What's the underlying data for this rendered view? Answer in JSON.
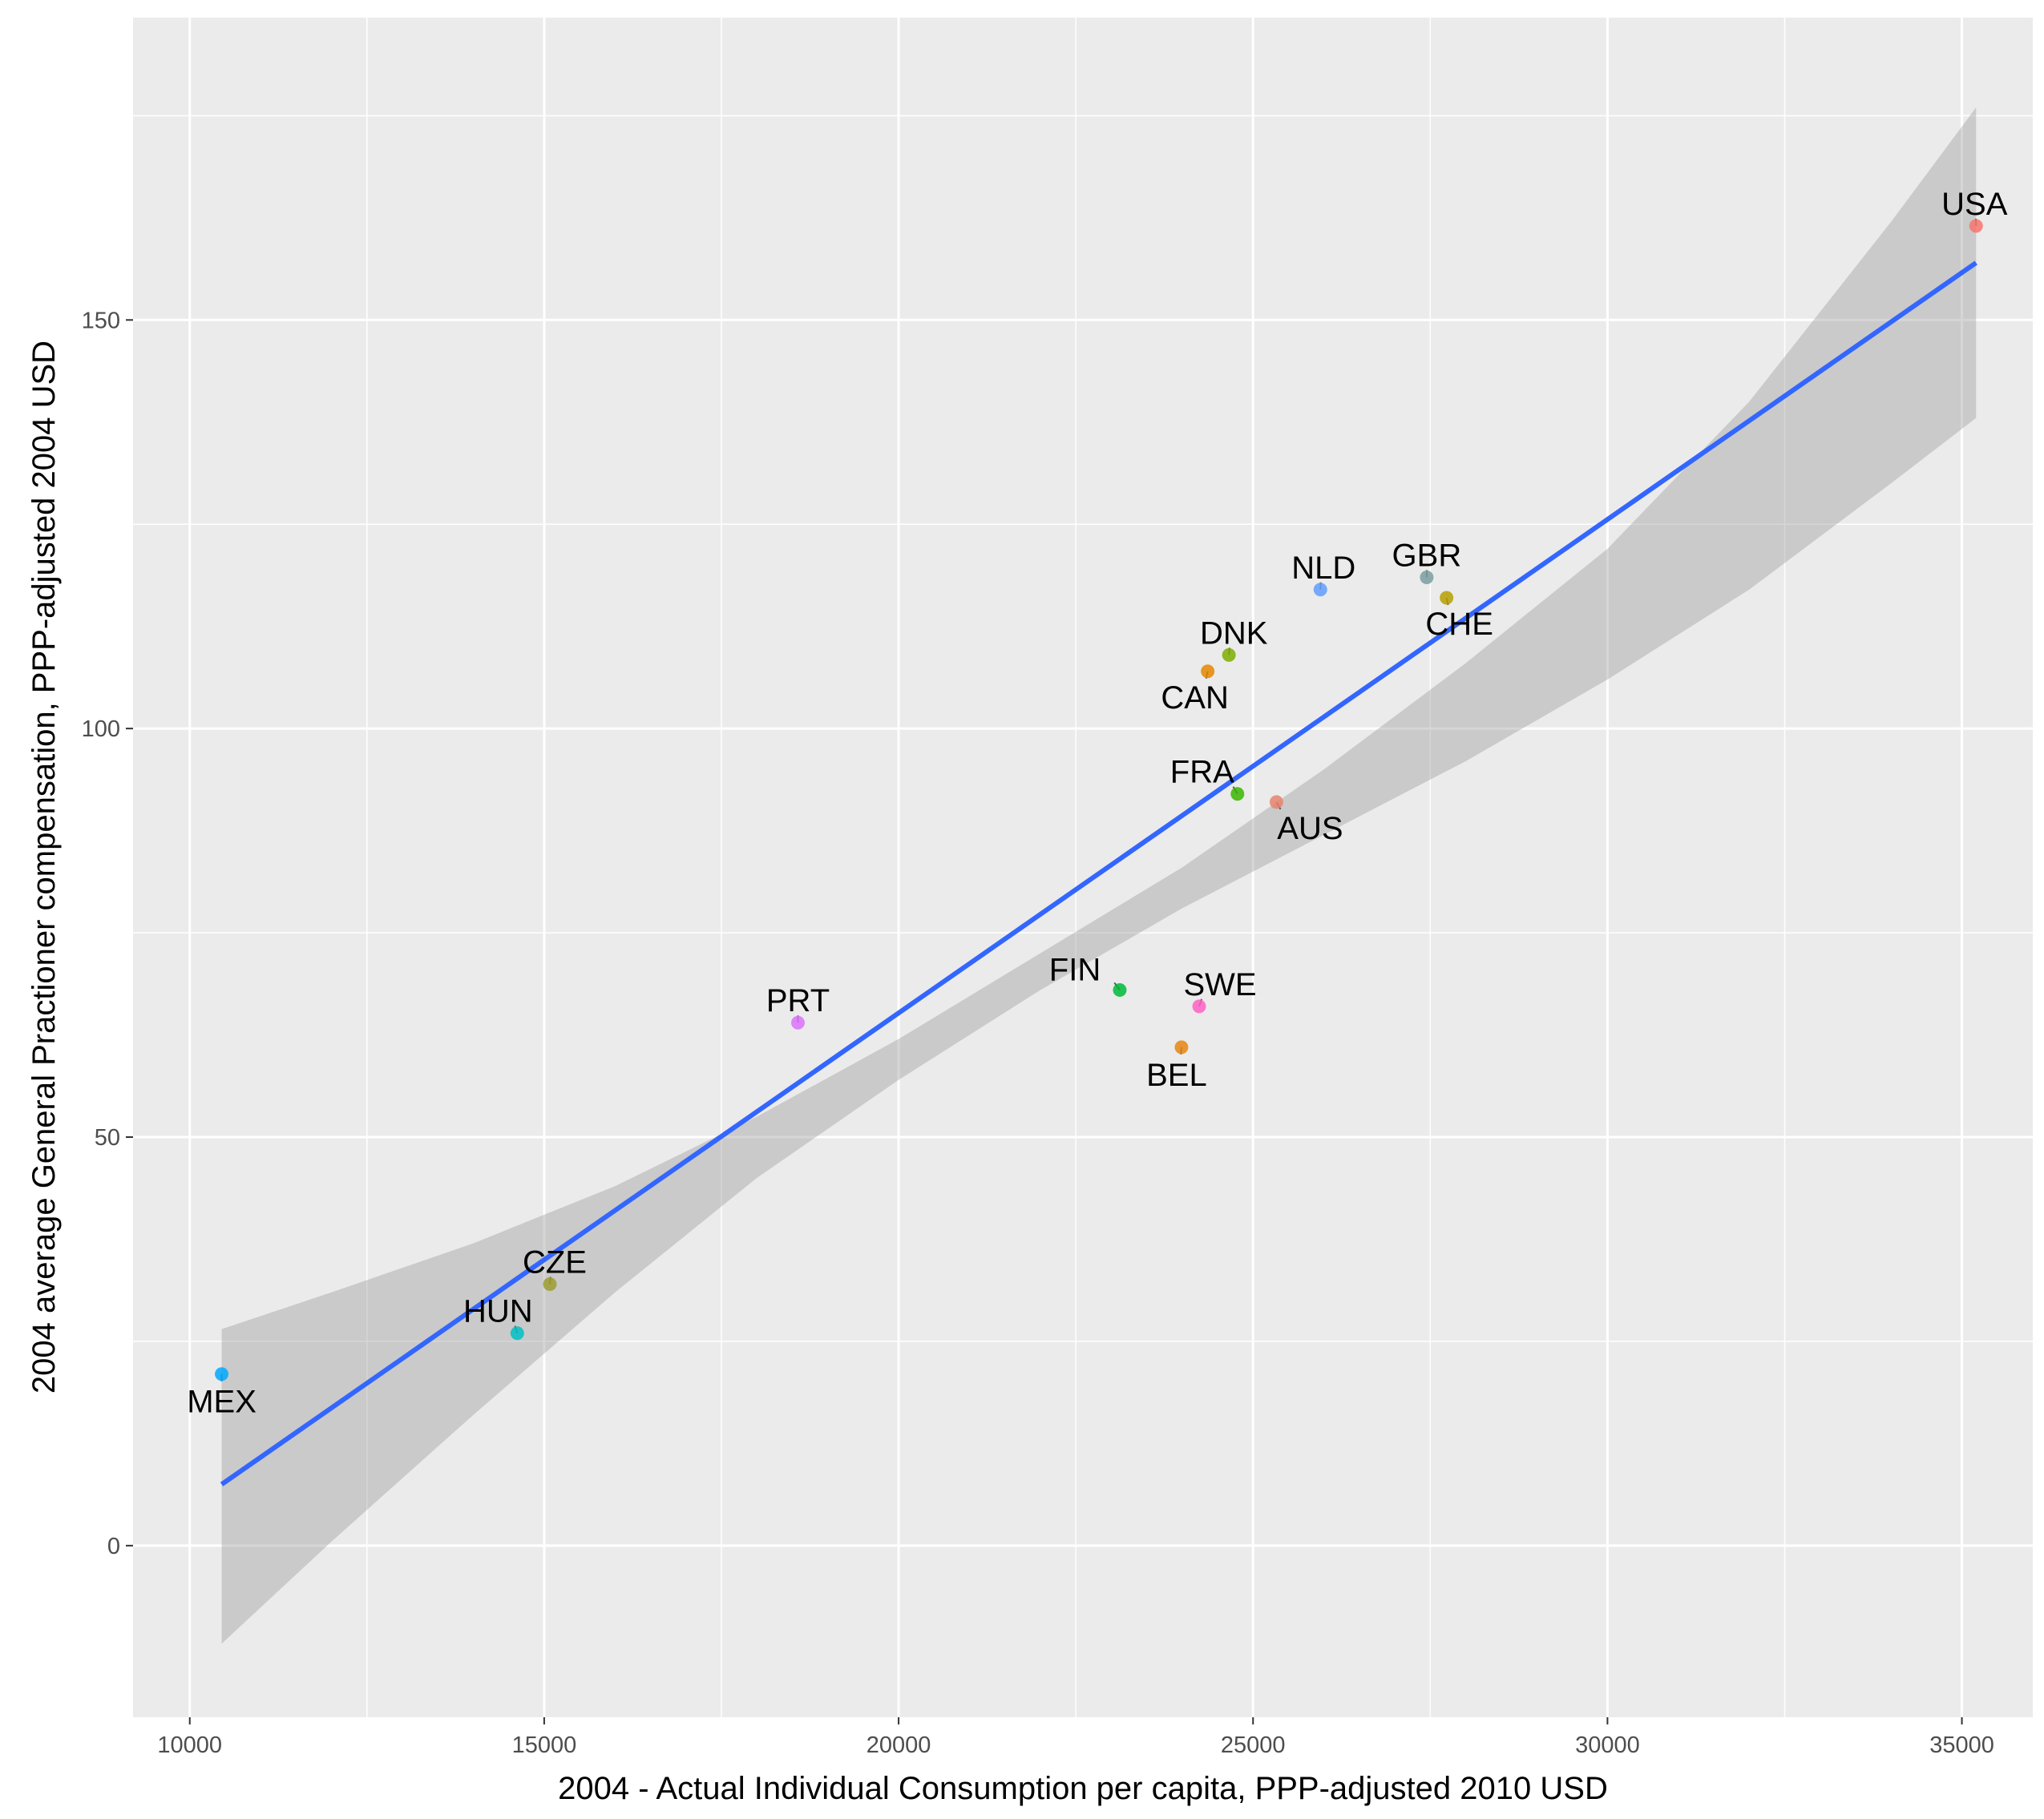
{
  "chart_data": {
    "type": "scatter",
    "title": "",
    "xlabel": "2004 - Actual Individual Consumption per capita, PPP-adjusted 2010 USD",
    "ylabel": "2004 average General Practioner compensation, PPP-adjusted 2004 USD",
    "xlim": [
      9200,
      36000
    ],
    "ylim": [
      -21,
      187
    ],
    "x_ticks": [
      10000,
      15000,
      20000,
      25000,
      30000,
      35000
    ],
    "x_tick_labels": [
      "10000",
      "15000",
      "20000",
      "25000",
      "30000",
      "35000"
    ],
    "y_ticks": [
      0,
      50,
      100,
      150
    ],
    "y_tick_labels": [
      "0",
      "50",
      "100",
      "150"
    ],
    "grid": true,
    "legend": "none",
    "points": [
      {
        "label": "USA",
        "x": 35200,
        "y": 161.5,
        "color": "#F8766D"
      },
      {
        "label": "GBR",
        "x": 27450,
        "y": 118.5,
        "color": "#7A9E9F"
      },
      {
        "label": "CHE",
        "x": 27730,
        "y": 116.0,
        "color": "#B79F00"
      },
      {
        "label": "NLD",
        "x": 25950,
        "y": 117.0,
        "color": "#619CFF"
      },
      {
        "label": "DNK",
        "x": 24660,
        "y": 109.0,
        "color": "#7CAE00"
      },
      {
        "label": "CAN",
        "x": 24360,
        "y": 107.0,
        "color": "#E58700"
      },
      {
        "label": "FRA",
        "x": 24780,
        "y": 92.0,
        "color": "#39B600"
      },
      {
        "label": "AUS",
        "x": 25330,
        "y": 91.0,
        "color": "#E8846F"
      },
      {
        "label": "FIN",
        "x": 23120,
        "y": 68.0,
        "color": "#00BA38"
      },
      {
        "label": "SWE",
        "x": 24240,
        "y": 66.0,
        "color": "#FF61C3"
      },
      {
        "label": "BEL",
        "x": 23990,
        "y": 61.0,
        "color": "#E68613"
      },
      {
        "label": "PRT",
        "x": 18580,
        "y": 64.0,
        "color": "#DB72FB"
      },
      {
        "label": "CZE",
        "x": 15080,
        "y": 32.0,
        "color": "#9E9E30"
      },
      {
        "label": "HUN",
        "x": 14620,
        "y": 26.0,
        "color": "#00BFC4"
      },
      {
        "label": "MEX",
        "x": 10450,
        "y": 21.0,
        "color": "#00A9FF"
      }
    ],
    "fit_line": {
      "x": [
        10450,
        35200
      ],
      "y": [
        7.5,
        157.0
      ],
      "color": "#3366FF"
    },
    "confidence_band": {
      "x": [
        10450,
        12000,
        14000,
        16000,
        18000,
        20000,
        22000,
        24000,
        26000,
        28000,
        30000,
        32000,
        34000,
        35200
      ],
      "lower": [
        -12.0,
        0.5,
        16.0,
        31.0,
        45.0,
        57.0,
        68.0,
        78.0,
        87.0,
        96.0,
        106.0,
        117.0,
        130.0,
        138.0
      ],
      "upper": [
        26.5,
        31.0,
        37.0,
        44.0,
        52.5,
        62.0,
        72.5,
        83.0,
        95.0,
        108.0,
        122.0,
        140.0,
        162.0,
        176.0
      ],
      "color": "#999999"
    }
  }
}
